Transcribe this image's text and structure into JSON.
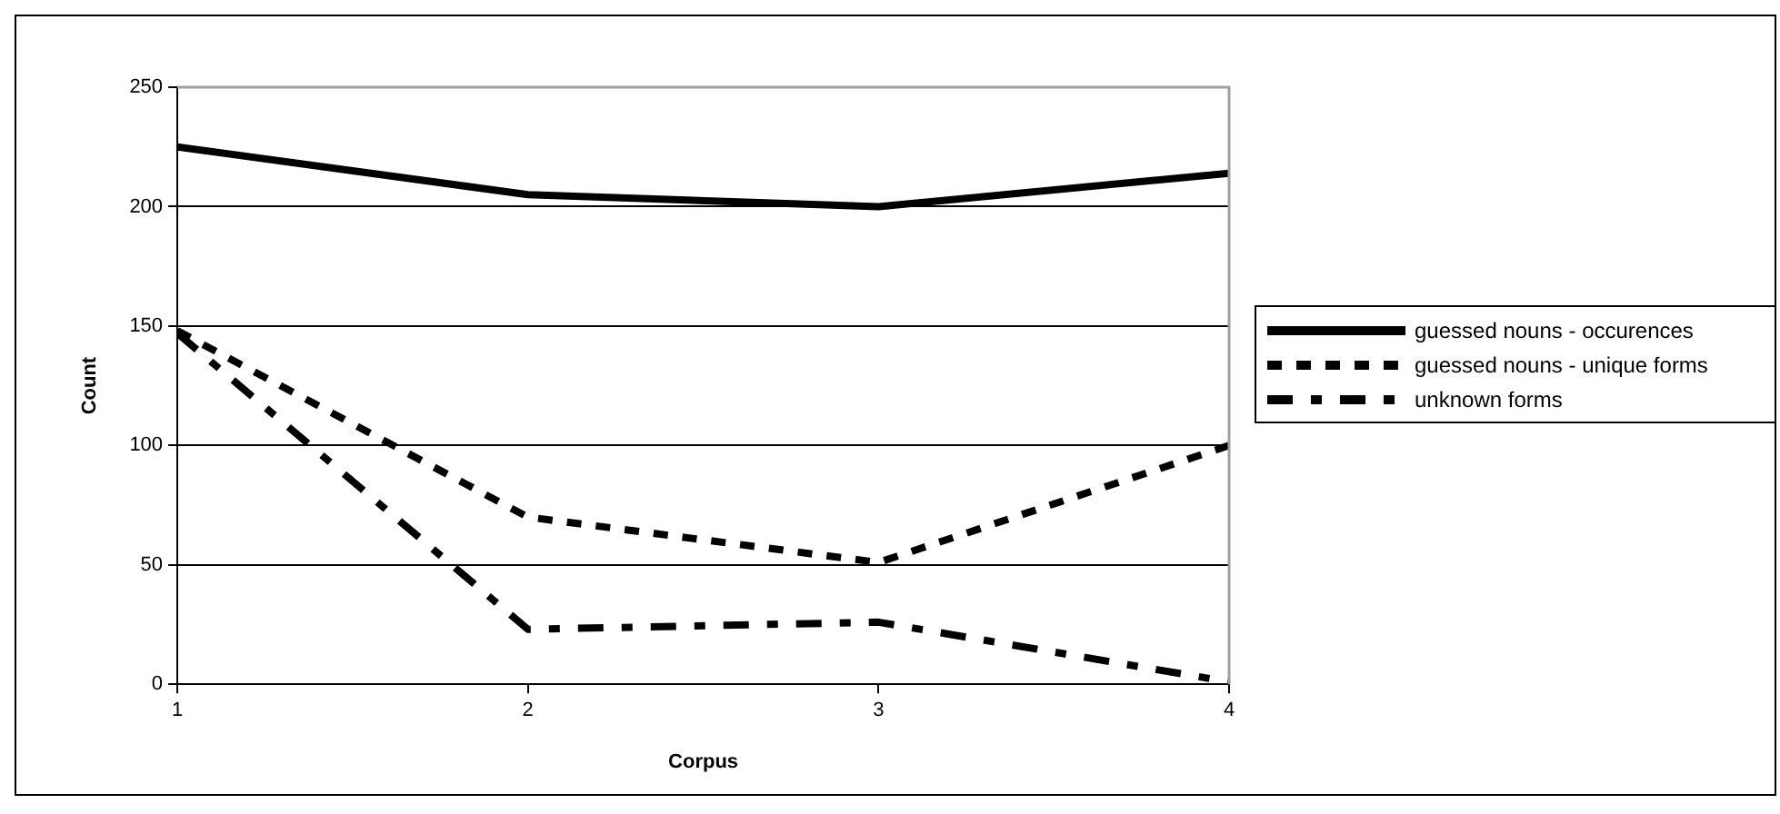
{
  "chart_data": {
    "type": "line",
    "xlabel": "Corpus",
    "ylabel": "Count",
    "x": [
      1,
      2,
      3,
      4
    ],
    "xlim": [
      1,
      4
    ],
    "xticks": [
      1,
      2,
      3,
      4
    ],
    "ylim": [
      0,
      250
    ],
    "yticks": [
      0,
      50,
      100,
      150,
      200,
      250
    ],
    "grid": "y",
    "legend": "right",
    "marker": "none",
    "series": [
      {
        "name": "guessed nouns - occurences",
        "color": "#000000",
        "line_style": "solid",
        "values": [
          225,
          205,
          200,
          214
        ]
      },
      {
        "name": "guessed nouns - unique forms",
        "color": "#000000",
        "line_style": "dotted",
        "values": [
          148,
          70,
          51,
          100
        ]
      },
      {
        "name": "unknown forms",
        "color": "#000000",
        "line_style": "dashed",
        "values": [
          147,
          23,
          26,
          1
        ]
      }
    ]
  }
}
